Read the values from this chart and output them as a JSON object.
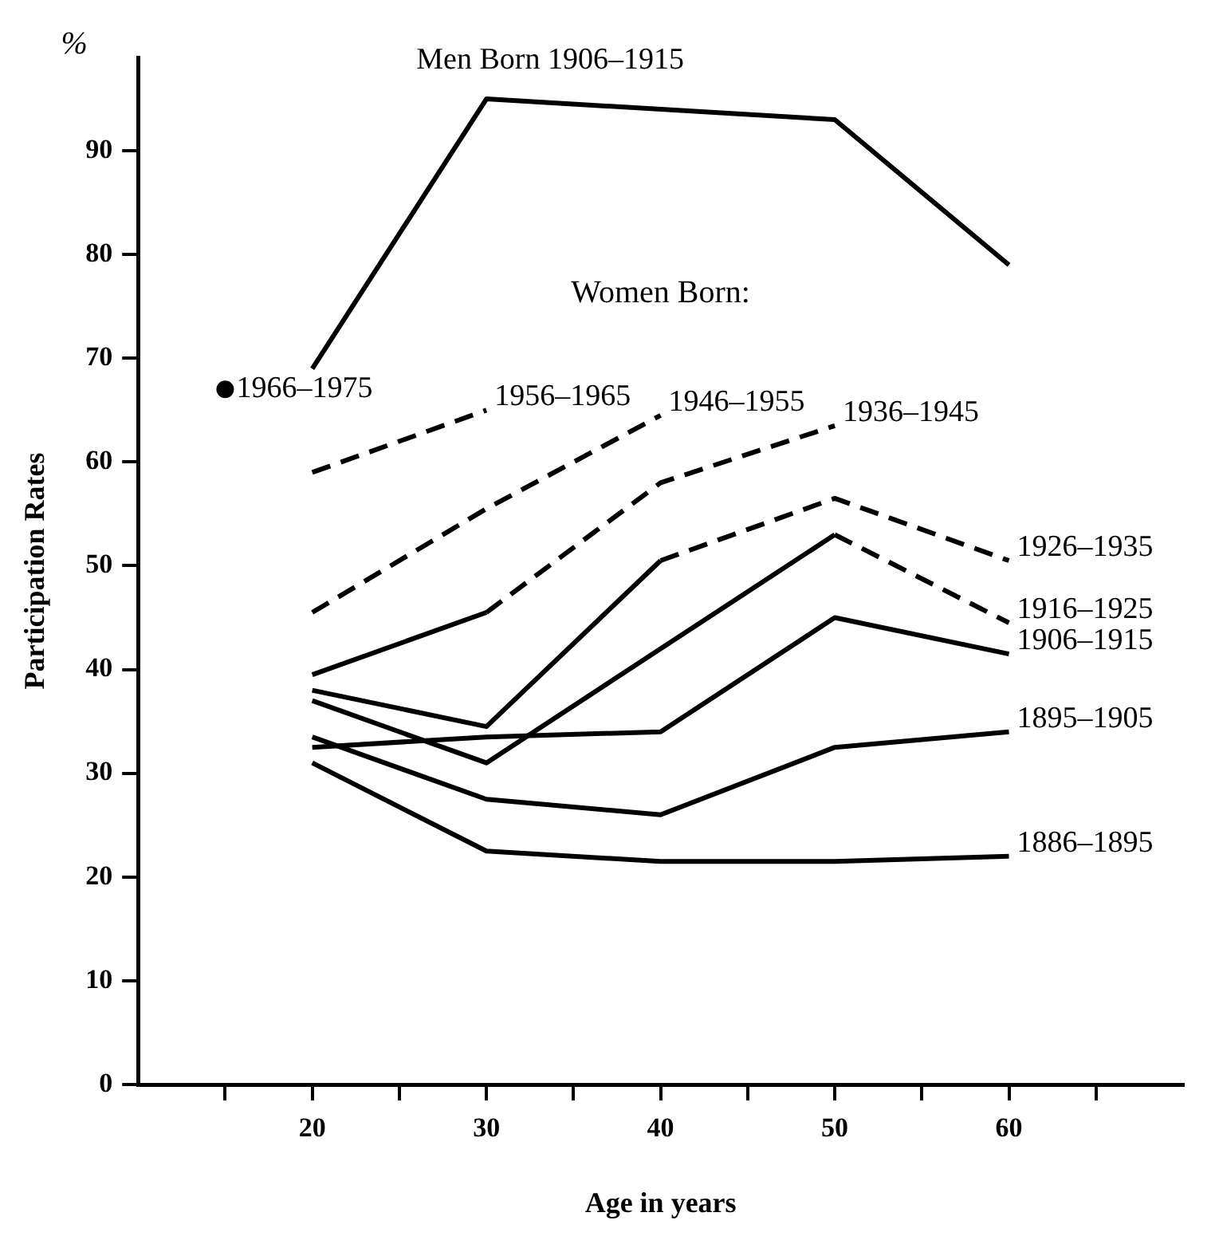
{
  "chart_data": {
    "type": "line",
    "xlabel": "Age in years",
    "ylabel": "Participation Rates",
    "annotations": [
      "%",
      "Women Born:"
    ],
    "xlim": [
      10,
      70
    ],
    "xticks": [
      {
        "value": 15,
        "label": null
      },
      20,
      {
        "value": 25,
        "label": null
      },
      30,
      {
        "value": 35,
        "label": null
      },
      40,
      {
        "value": 45,
        "label": null
      },
      50,
      {
        "value": 55,
        "label": null
      },
      60,
      {
        "value": 65,
        "label": null
      }
    ],
    "ylim": [
      0,
      99
    ],
    "yticks": [
      0,
      10,
      20,
      30,
      40,
      50,
      60,
      70,
      80,
      90
    ],
    "series": [
      {
        "name": "Men Born 1906–1915",
        "color": "#000000",
        "x": [
          20,
          30,
          50,
          60
        ],
        "values": [
          69,
          95,
          93,
          79
        ],
        "line_style": "solid"
      },
      {
        "name": "1966–1975",
        "type": "scatter",
        "color": "#000000",
        "x": [
          15
        ],
        "values": [
          67
        ],
        "marker": "circle"
      },
      {
        "name": "1956–1965",
        "color": "#000000",
        "x": [
          20,
          30
        ],
        "values": [
          59,
          65
        ],
        "line_style": "dashed"
      },
      {
        "name": "1946–1955",
        "color": "#000000",
        "x": [
          20,
          30,
          40
        ],
        "values": [
          45.5,
          55.5,
          64.5
        ],
        "line_style": "dashed"
      },
      {
        "color": "#000000",
        "x": [
          20,
          30
        ],
        "values": [
          39.5,
          45.5
        ],
        "line_style": "solid"
      },
      {
        "name": "1936–1945",
        "color": "#000000",
        "x": [
          30,
          40,
          50
        ],
        "values": [
          45.5,
          58,
          63.5
        ],
        "line_style": "dashed"
      },
      {
        "color": "#000000",
        "x": [
          20,
          30,
          40
        ],
        "values": [
          38,
          34.5,
          50.5
        ],
        "line_style": "solid"
      },
      {
        "name": "1926–1935",
        "color": "#000000",
        "x": [
          40,
          50,
          60
        ],
        "values": [
          50.5,
          56.5,
          50.5
        ],
        "line_style": "dashed"
      },
      {
        "color": "#000000",
        "x": [
          20,
          30,
          40,
          50
        ],
        "values": [
          37,
          31,
          42,
          53
        ],
        "line_style": "solid"
      },
      {
        "name": "1916–1925",
        "color": "#000000",
        "x": [
          50,
          60
        ],
        "values": [
          53,
          44.5
        ],
        "line_style": "dashed"
      },
      {
        "name": "1906–1915",
        "color": "#000000",
        "x": [
          20,
          30,
          40,
          50,
          60
        ],
        "values": [
          32.5,
          33.5,
          34,
          45,
          41.5
        ],
        "line_style": "solid"
      },
      {
        "name": "1895–1905",
        "color": "#000000",
        "x": [
          20,
          30,
          40,
          50,
          60
        ],
        "values": [
          33.5,
          27.5,
          26,
          32.5,
          34
        ],
        "line_style": "solid"
      },
      {
        "name": "1886–1895",
        "color": "#000000",
        "x": [
          20,
          30,
          40,
          50,
          60
        ],
        "values": [
          31,
          22.5,
          21.5,
          21.5,
          22
        ],
        "line_style": "solid"
      }
    ]
  }
}
